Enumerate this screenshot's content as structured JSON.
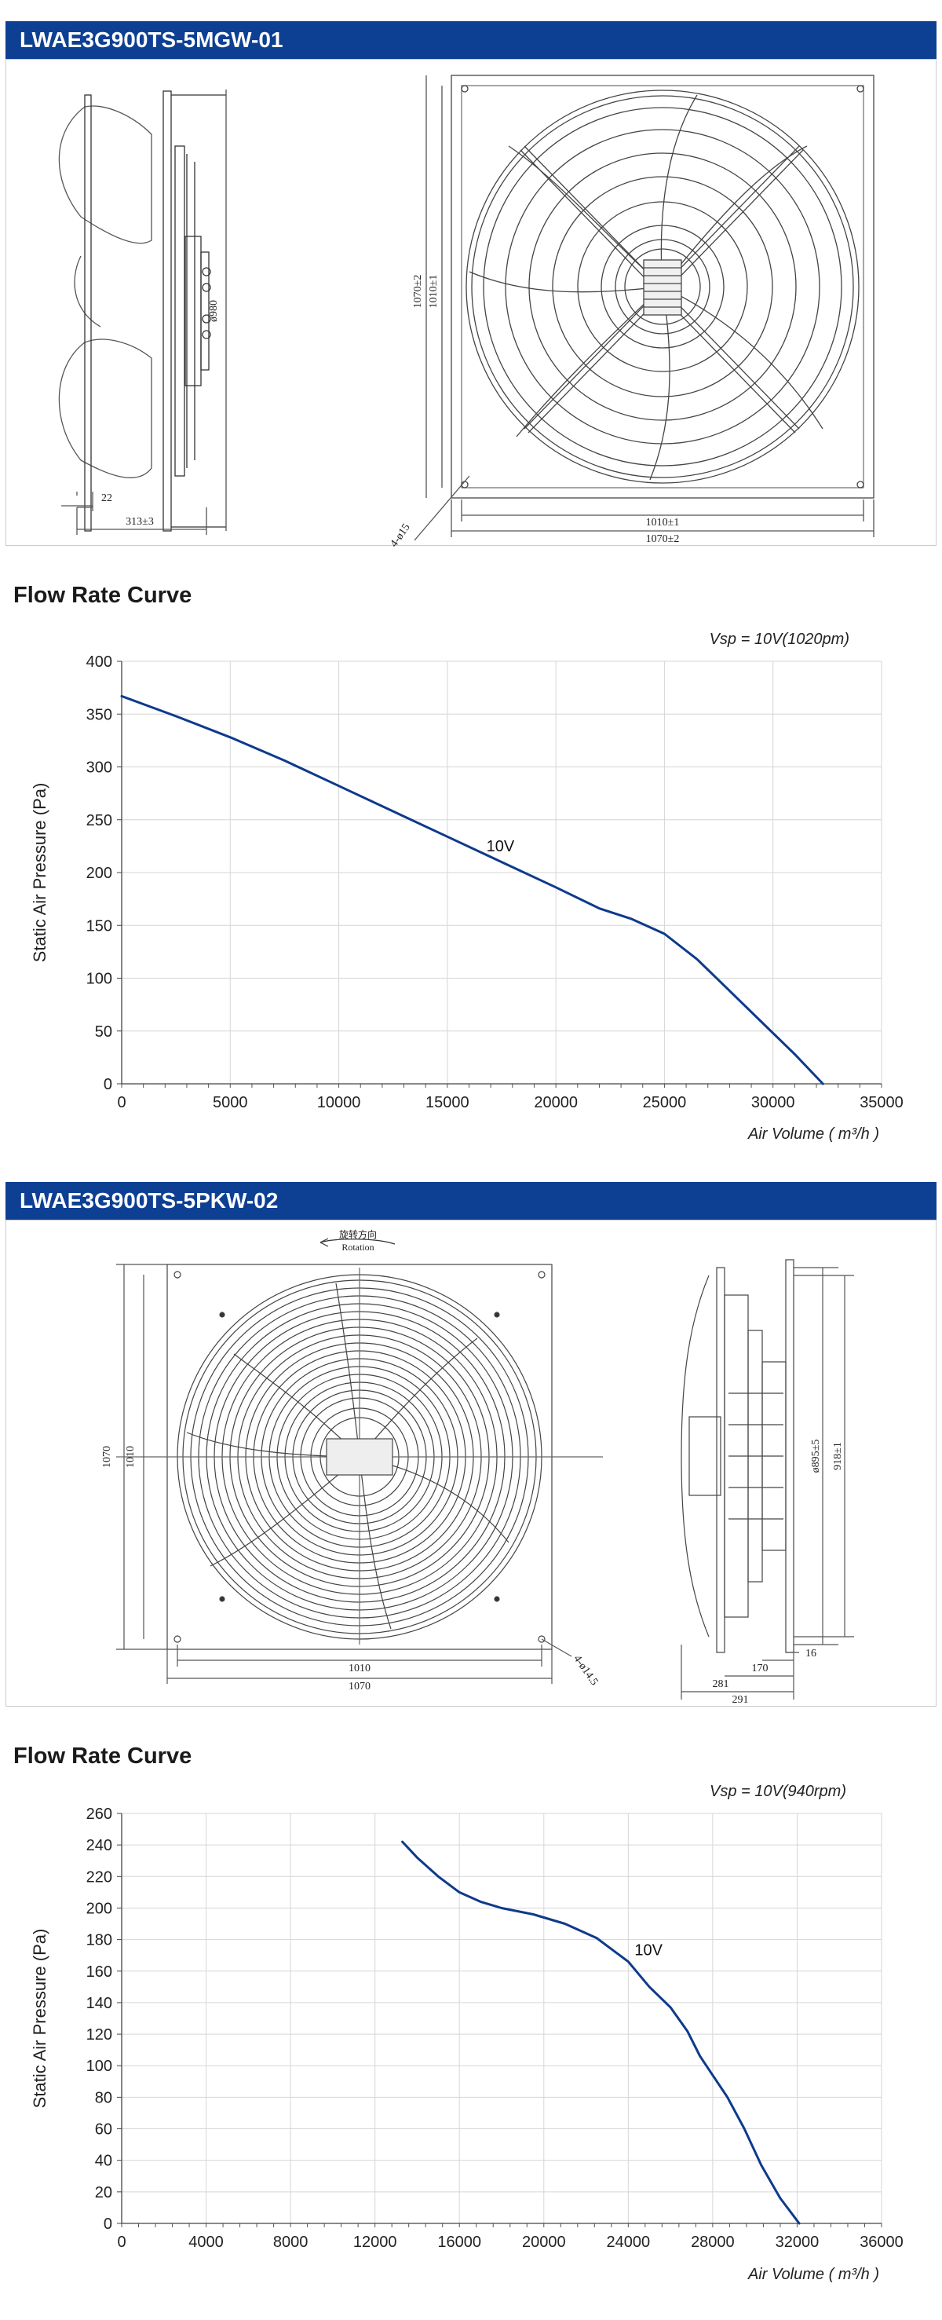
{
  "products": [
    {
      "model_title": "LWAE3G900TS-5MGW-01",
      "dimensions": {
        "side_diameter": "ø980",
        "side_flange": "22",
        "side_depth": "313±3",
        "front_height_outer": "1070±2",
        "front_height_inner": "1010±1",
        "front_width_inner": "1010±1",
        "front_width_outer": "1070±2",
        "mounting_holes": "4-ø15"
      }
    },
    {
      "model_title": "LWAE3G900TS-5PKW-02",
      "dimensions": {
        "rotation_cn": "旋转方向",
        "rotation_en": "Rotation",
        "front_height_outer": "1070",
        "front_height_inner": "1010",
        "front_width_inner": "1010",
        "front_width_outer": "1070",
        "mounting_holes": "4-ø14.5",
        "side_diameter_a": "ø895±5",
        "side_diameter_b": "918±1",
        "side_flange": "16",
        "side_depth_a": "170",
        "side_depth_b": "281",
        "side_depth_c": "291"
      }
    }
  ],
  "section_titles": [
    "Flow Rate Curve",
    "Flow Rate Curve"
  ],
  "chart_data": [
    {
      "type": "line",
      "title": "",
      "annotation": "Vsp = 10V(1020pm)",
      "xlabel": "Air Volume ( m³/h )",
      "ylabel": "Static Air Pressure  (Pa)",
      "xlim": [
        0,
        35000
      ],
      "ylim": [
        0,
        400
      ],
      "x_ticks": [
        0,
        5000,
        10000,
        15000,
        20000,
        25000,
        30000,
        35000
      ],
      "y_ticks": [
        0,
        50,
        100,
        150,
        200,
        250,
        300,
        350,
        400
      ],
      "grid": true,
      "series": [
        {
          "name": "10V",
          "label_at": [
            16800,
            220
          ],
          "x": [
            0,
            2500,
            5000,
            7500,
            10000,
            12500,
            15000,
            17500,
            20000,
            22000,
            23500,
            25000,
            26500,
            28000,
            29500,
            31000,
            32300
          ],
          "y": [
            367,
            348,
            328,
            306,
            282,
            258,
            234,
            210,
            186,
            166,
            156,
            142,
            118,
            88,
            58,
            28,
            0
          ]
        }
      ],
      "color": "#0d3a8c"
    },
    {
      "type": "line",
      "title": "",
      "annotation": "Vsp = 10V(940rpm)",
      "xlabel": "Air Volume ( m³/h )",
      "ylabel": "Static Air Pressure  (Pa)",
      "xlim": [
        0,
        36000
      ],
      "ylim": [
        0,
        260
      ],
      "x_ticks": [
        0,
        4000,
        8000,
        12000,
        16000,
        20000,
        24000,
        28000,
        32000,
        36000
      ],
      "y_ticks": [
        0,
        20,
        40,
        60,
        80,
        100,
        120,
        140,
        160,
        180,
        200,
        220,
        240,
        260
      ],
      "grid": true,
      "series": [
        {
          "name": "10V",
          "label_at": [
            24300,
            170
          ],
          "x": [
            13300,
            14000,
            15000,
            16000,
            17000,
            18000,
            19500,
            21000,
            22500,
            24000,
            25000,
            26000,
            26800,
            27400,
            28000,
            28700,
            29500,
            30300,
            31200,
            32100
          ],
          "y": [
            242,
            232,
            220,
            210,
            204,
            200,
            196,
            190,
            181,
            166,
            150,
            137,
            122,
            106,
            94,
            80,
            60,
            37,
            16,
            0
          ]
        }
      ],
      "color": "#0d3a8c"
    }
  ]
}
